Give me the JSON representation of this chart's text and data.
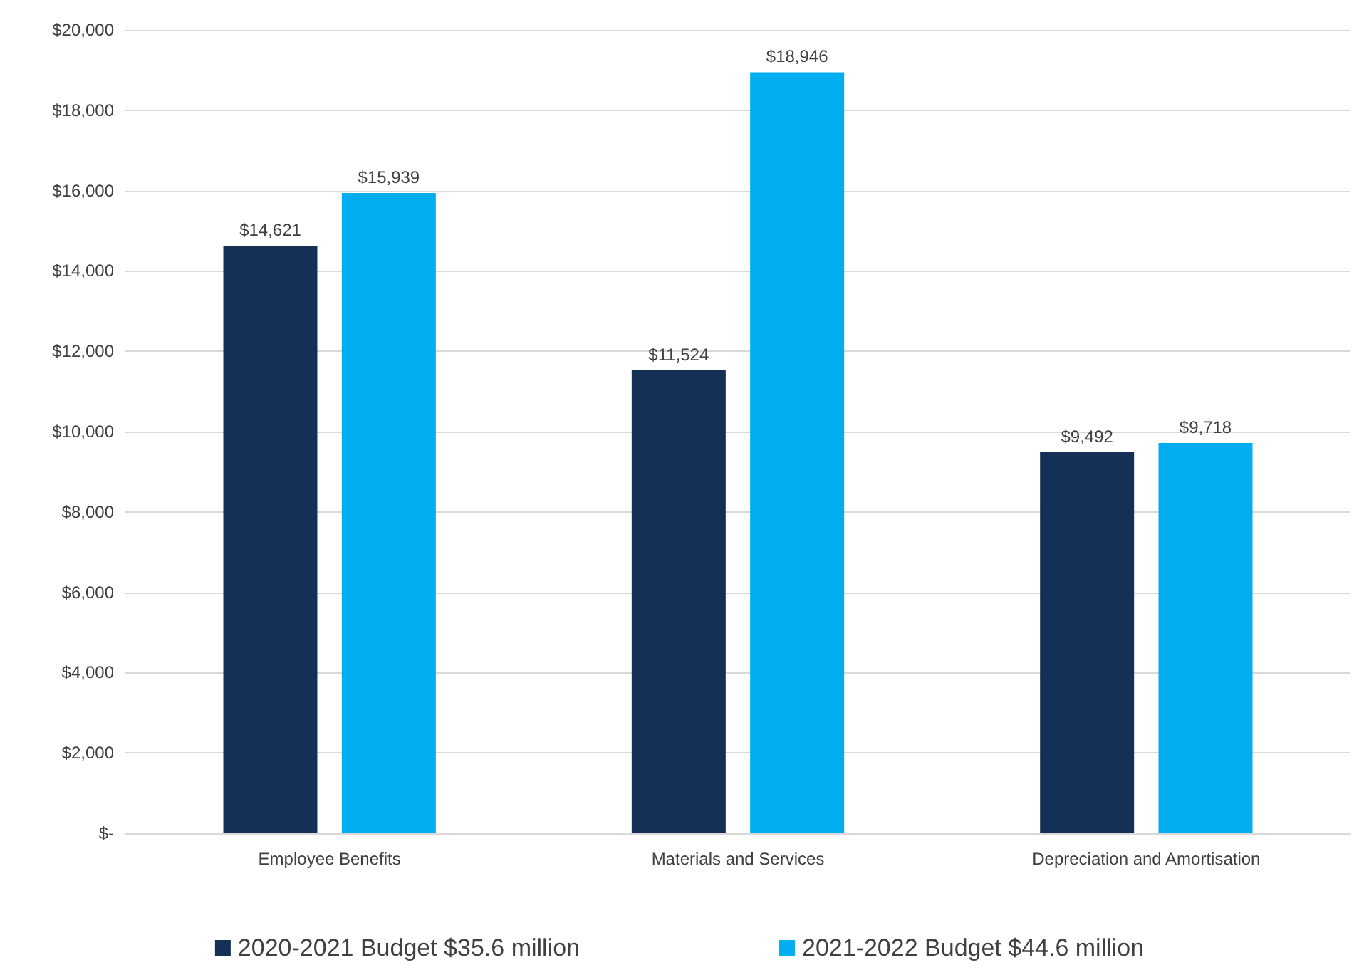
{
  "chart_data": {
    "type": "bar",
    "categories": [
      "Employee Benefits",
      "Materials and Services",
      "Depreciation and Amortisation"
    ],
    "series": [
      {
        "name": "2020-2021 Budget $35.6 million",
        "color": "#153055",
        "values": [
          14621,
          11524,
          9492
        ],
        "value_labels": [
          "$14,621",
          "$11,524",
          "$9,492"
        ]
      },
      {
        "name": "2021-2022 Budget $44.6 million",
        "color": "#00adef",
        "values": [
          15939,
          18946,
          9718
        ],
        "value_labels": [
          "$15,939",
          "$18,946",
          "$9,718"
        ]
      }
    ],
    "ylim": [
      0,
      20000
    ],
    "yticks": [
      {
        "value": 0,
        "label": "$-"
      },
      {
        "value": 2000,
        "label": "$2,000"
      },
      {
        "value": 4000,
        "label": "$4,000"
      },
      {
        "value": 6000,
        "label": "$6,000"
      },
      {
        "value": 8000,
        "label": "$8,000"
      },
      {
        "value": 10000,
        "label": "$10,000"
      },
      {
        "value": 12000,
        "label": "$12,000"
      },
      {
        "value": 14000,
        "label": "$14,000"
      },
      {
        "value": 16000,
        "label": "$16,000"
      },
      {
        "value": 18000,
        "label": "$18,000"
      },
      {
        "value": 20000,
        "label": "$20,000"
      }
    ],
    "grid": "y",
    "legend": "bottom"
  }
}
